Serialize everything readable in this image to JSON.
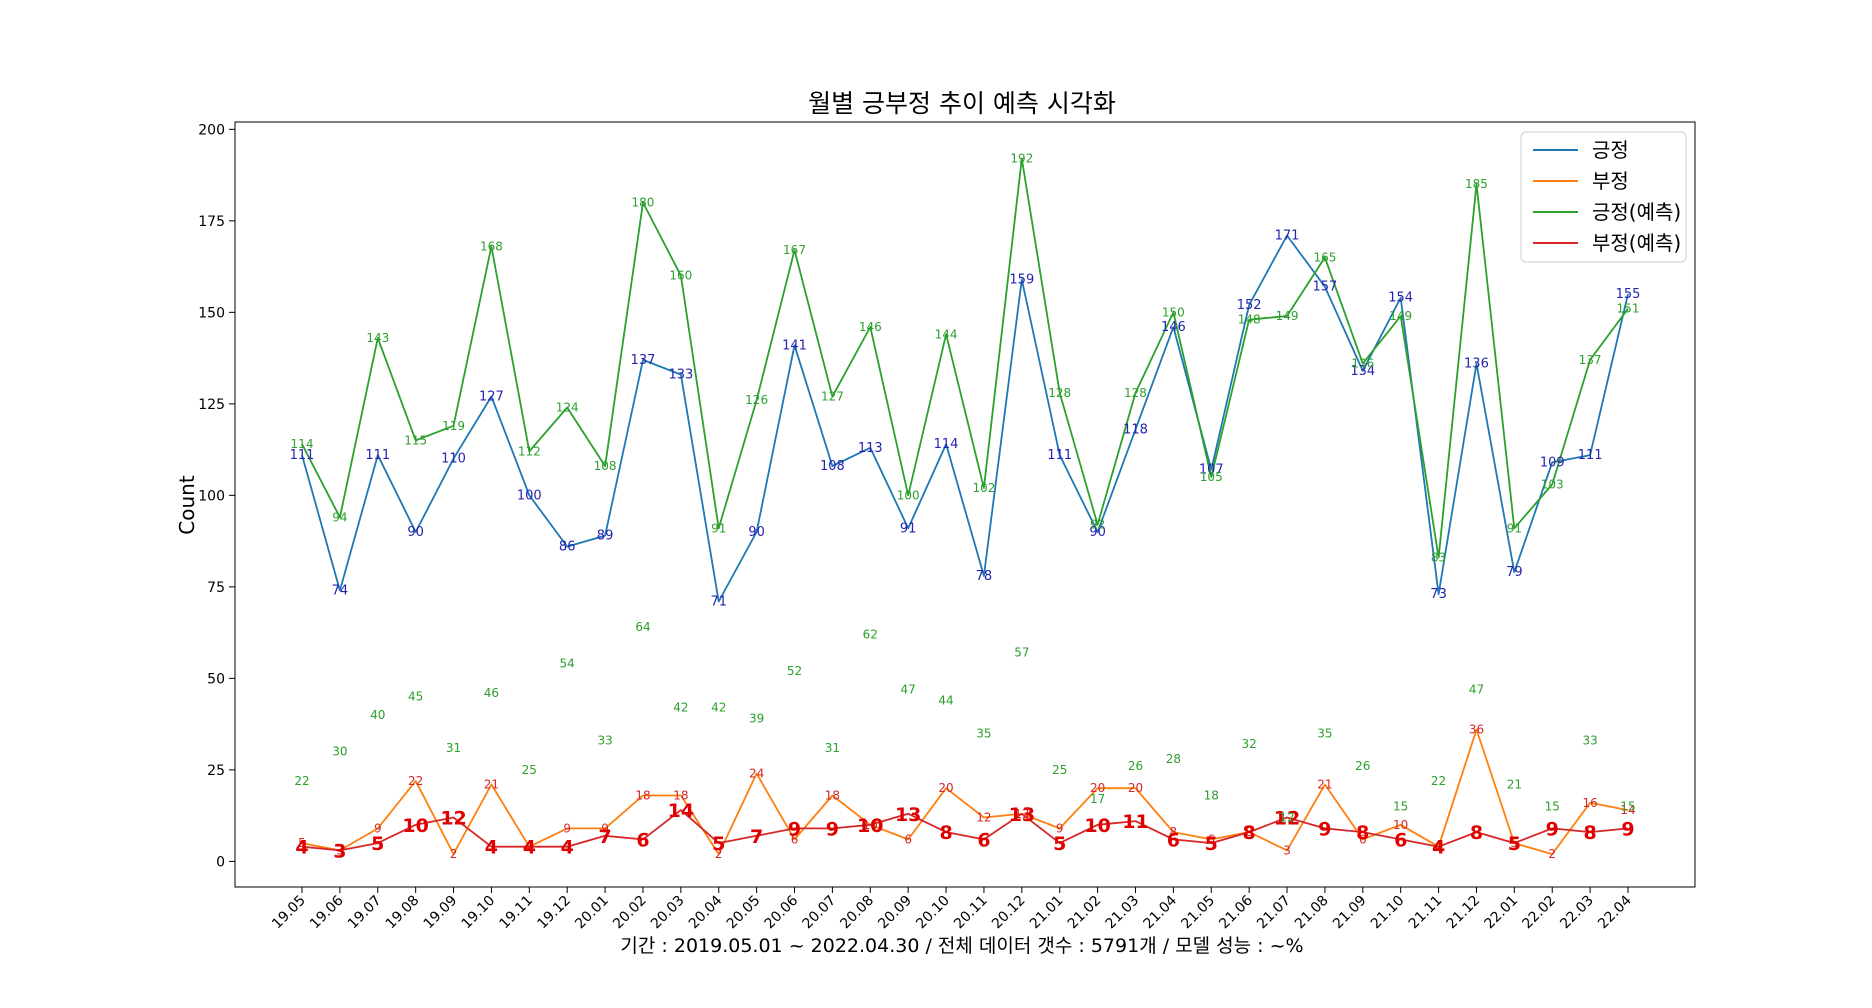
{
  "chart_data": {
    "type": "line",
    "title": "월별 긍부정 추이 예측 시각화",
    "ylabel": "Count",
    "xlabel": "기간 : 2019.05.01 ~ 2022.04.30   /   전체 데이터 갯수 : 5791개   /   모델 성능 : ~%",
    "ylim": [
      -7,
      202
    ],
    "yticks": [
      0,
      25,
      50,
      75,
      100,
      125,
      150,
      175,
      200
    ],
    "categories": [
      "19.05",
      "19.06",
      "19.07",
      "19.08",
      "19.09",
      "19.10",
      "19.11",
      "19.12",
      "20.01",
      "20.02",
      "20.03",
      "20.04",
      "20.05",
      "20.06",
      "20.07",
      "20.08",
      "20.09",
      "20.10",
      "20.11",
      "20.12",
      "21.01",
      "21.02",
      "21.03",
      "21.04",
      "21.05",
      "21.06",
      "21.07",
      "21.08",
      "21.09",
      "21.10",
      "21.11",
      "21.12",
      "22.01",
      "22.02",
      "22.03",
      "22.04"
    ],
    "legend_position": "top-right",
    "series": [
      {
        "name": "긍정",
        "color": "#1f77b4",
        "label_color": "#2424b0",
        "label_size": 13,
        "label_weight": "normal",
        "values": [
          111,
          74,
          111,
          90,
          110,
          127,
          100,
          86,
          89,
          137,
          133,
          71,
          90,
          141,
          108,
          113,
          91,
          114,
          78,
          159,
          111,
          90,
          118,
          146,
          107,
          152,
          171,
          157,
          134,
          154,
          73,
          136,
          79,
          109,
          111,
          155
        ]
      },
      {
        "name": "부정",
        "color": "#ff7f0e",
        "label_color": "#d62728",
        "label_size": 12,
        "label_weight": "normal",
        "values": [
          5,
          3,
          9,
          22,
          2,
          21,
          4,
          9,
          9,
          18,
          18,
          2,
          24,
          6,
          18,
          10,
          6,
          20,
          12,
          13,
          9,
          20,
          20,
          8,
          6,
          8,
          3,
          21,
          6,
          10,
          4,
          36,
          5,
          2,
          16,
          14
        ]
      },
      {
        "name": "긍정(예측)",
        "color": "#2ca02c",
        "label_color": "#2ca02c",
        "label_size": 12,
        "label_weight": "normal",
        "values": [
          114,
          94,
          143,
          115,
          119,
          168,
          112,
          124,
          108,
          180,
          160,
          91,
          126,
          167,
          127,
          146,
          100,
          144,
          102,
          192,
          128,
          92,
          128,
          150,
          105,
          148,
          149,
          165,
          136,
          149,
          83,
          185,
          91,
          103,
          137,
          151
        ]
      },
      {
        "name": "부정(예측)",
        "color": "#d62728",
        "label_color": "#e00000",
        "label_size": 19,
        "label_weight": "bold",
        "values": [
          4,
          3,
          5,
          10,
          12,
          4,
          4,
          4,
          7,
          6,
          14,
          5,
          7,
          9,
          9,
          10,
          13,
          8,
          6,
          13,
          5,
          10,
          11,
          6,
          5,
          8,
          12,
          9,
          8,
          6,
          4,
          8,
          5,
          9,
          8,
          9
        ]
      }
    ],
    "extra_labels": {
      "color": "#2ca02c",
      "values": [
        22,
        30,
        40,
        45,
        31,
        46,
        25,
        54,
        33,
        64,
        42,
        42,
        39,
        52,
        31,
        62,
        47,
        44,
        35,
        57,
        25,
        17,
        26,
        28,
        18,
        32,
        12,
        35,
        26,
        15,
        22,
        47,
        21,
        15,
        33,
        15
      ]
    }
  }
}
